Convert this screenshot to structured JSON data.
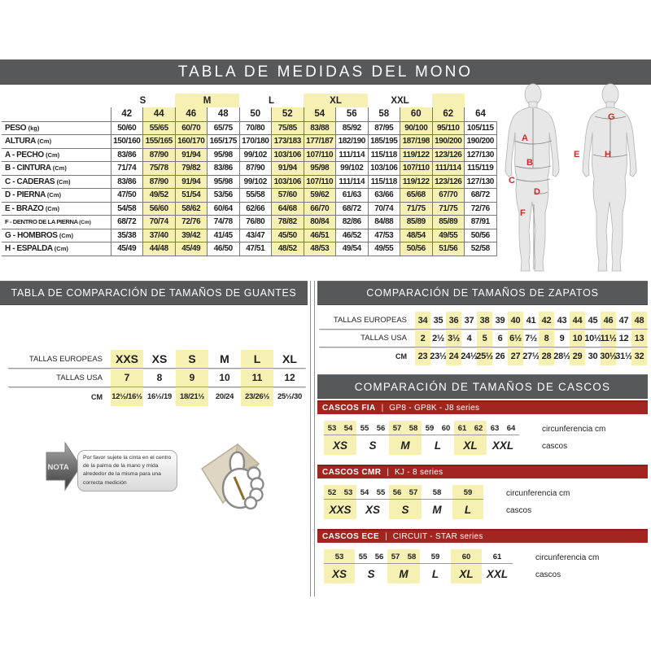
{
  "page": {
    "title": "TABLA DE MEDIDAS DEL MONO"
  },
  "colors": {
    "banner_gray": "#57585a",
    "banner_red": "#a32520",
    "highlight_yellow": "#f6f0b2"
  },
  "suit_table": {
    "groups": [
      {
        "label": "",
        "span": 1,
        "highlight": false
      },
      {
        "label": "S",
        "span": 2,
        "highlight": true
      },
      {
        "label": "M",
        "span": 2,
        "highlight": false
      },
      {
        "label": "L",
        "span": 2,
        "highlight": true
      },
      {
        "label": "XL",
        "span": 2,
        "highlight": false
      },
      {
        "label": "XXL",
        "span": 2,
        "highlight": true
      },
      {
        "label": "",
        "span": 1,
        "highlight": false
      }
    ],
    "sizes": [
      "42",
      "44",
      "46",
      "48",
      "50",
      "52",
      "54",
      "56",
      "58",
      "60",
      "62",
      "64"
    ],
    "highlight_cols": [
      1,
      2,
      5,
      6,
      9,
      10
    ],
    "rows": [
      {
        "label": "PESO",
        "unit": "(kg)",
        "values": [
          "50/60",
          "55/65",
          "60/70",
          "65/75",
          "70/80",
          "75/85",
          "83/88",
          "85/92",
          "87/95",
          "90/100",
          "95/110",
          "105/115"
        ]
      },
      {
        "label": "ALTURA",
        "unit": "(Cm)",
        "values": [
          "150/160",
          "155/165",
          "160/170",
          "165/175",
          "170/180",
          "173/183",
          "177/187",
          "182/190",
          "185/195",
          "187/198",
          "190/200",
          "190/200"
        ]
      },
      {
        "label": "A - PECHO",
        "unit": "(Cm)",
        "values": [
          "83/86",
          "87/90",
          "91/94",
          "95/98",
          "99/102",
          "103/106",
          "107/110",
          "111/114",
          "115/118",
          "119/122",
          "123/126",
          "127/130"
        ]
      },
      {
        "label": "B - CINTURA",
        "unit": "(Cm)",
        "values": [
          "71/74",
          "75/78",
          "79/82",
          "83/86",
          "87/90",
          "91/94",
          "95/98",
          "99/102",
          "103/106",
          "107/110",
          "111/114",
          "115/119"
        ]
      },
      {
        "label": "C - CADERAS",
        "unit": "(Cm)",
        "values": [
          "83/86",
          "87/90",
          "91/94",
          "95/98",
          "99/102",
          "103/106",
          "107/110",
          "111/114",
          "115/118",
          "119/122",
          "123/126",
          "127/130"
        ]
      },
      {
        "label": "D - PIERNA",
        "unit": "(Cm)",
        "values": [
          "47/50",
          "49/52",
          "51/54",
          "53/56",
          "55/58",
          "57/60",
          "59/62",
          "61/63",
          "63/66",
          "65/68",
          "67/70",
          "68/72"
        ]
      },
      {
        "label": "E - BRAZO",
        "unit": "(Cm)",
        "values": [
          "54/58",
          "56/60",
          "58/62",
          "60/64",
          "62/66",
          "64/68",
          "66/70",
          "68/72",
          "70/74",
          "71/75",
          "71/75",
          "72/76"
        ]
      },
      {
        "label": "F - DENTRO DE LA PIERNA",
        "unit": "(Cm)",
        "values": [
          "68/72",
          "70/74",
          "72/76",
          "74/78",
          "76/80",
          "78/82",
          "80/84",
          "82/86",
          "84/88",
          "85/89",
          "85/89",
          "87/91"
        ]
      },
      {
        "label": "G - HOMBROS",
        "unit": "(Cm)",
        "values": [
          "35/38",
          "37/40",
          "39/42",
          "41/45",
          "43/47",
          "45/50",
          "46/51",
          "46/52",
          "47/53",
          "48/54",
          "49/55",
          "50/56"
        ]
      },
      {
        "label": "H - ESPALDA",
        "unit": "(Cm)",
        "values": [
          "45/49",
          "44/48",
          "45/49",
          "46/50",
          "47/51",
          "48/52",
          "48/53",
          "49/54",
          "49/55",
          "50/56",
          "51/56",
          "52/58"
        ]
      }
    ]
  },
  "figures": {
    "front_labels": [
      "A",
      "B",
      "C",
      "D",
      "F"
    ],
    "back_labels": [
      "G",
      "E",
      "H"
    ]
  },
  "gloves": {
    "title": "TABLA DE COMPARACIÓN DE TAMAÑOS DE GUANTES",
    "highlight_cols": [
      0,
      2,
      4
    ],
    "rows": [
      {
        "label": "TALLAS EUROPEAS",
        "values": [
          "XXS",
          "XS",
          "S",
          "M",
          "L",
          "XL"
        ]
      },
      {
        "label": "TALLAS USA",
        "values": [
          "7",
          "8",
          "9",
          "10",
          "11",
          "12"
        ]
      },
      {
        "label": "CM",
        "values": [
          "12½/16½",
          "16½/19",
          "18/21½",
          "20/24",
          "23/26½",
          "25½/30"
        ]
      }
    ],
    "note": {
      "tag": "NOTA",
      "text": "Por favor sujete la cinta en el centro de la palma de la mano y mida alrededor de la misma para una correcta medición"
    }
  },
  "shoes": {
    "title": "COMPARACIÓN DE TAMAÑOS DE ZAPATOS",
    "highlight_cols": [
      0,
      2,
      4,
      6,
      8,
      10,
      12,
      14
    ],
    "rows": [
      {
        "label": "TALLAS EUROPEAS",
        "values": [
          "34",
          "35",
          "36",
          "37",
          "38",
          "39",
          "40",
          "41",
          "42",
          "43",
          "44",
          "45",
          "46",
          "47",
          "48"
        ]
      },
      {
        "label": "TALLAS USA",
        "values": [
          "2",
          "2½",
          "3½",
          "4",
          "5",
          "6",
          "6½",
          "7½",
          "8",
          "9",
          "10",
          "10½",
          "11½",
          "12",
          "13"
        ]
      },
      {
        "label": "CM",
        "values": [
          "23",
          "23½",
          "24",
          "24½",
          "25½",
          "26",
          "27",
          "27½",
          "28",
          "28½",
          "29",
          "30",
          "30½",
          "31½",
          "32"
        ]
      }
    ]
  },
  "helmets": {
    "title": "COMPARACIÓN DE TAMAÑOS DE CASCOS",
    "divider": "|",
    "row_label_circ": "circunferencia cm",
    "row_label_size": "cascos",
    "blocks": [
      {
        "name": "CASCOS FIA",
        "series": "GP8 - GP8K - J8 series",
        "groups": [
          {
            "label": "XS",
            "numbers": [
              "53",
              "54"
            ],
            "highlight": true
          },
          {
            "label": "S",
            "numbers": [
              "55",
              "56"
            ],
            "highlight": false
          },
          {
            "label": "M",
            "numbers": [
              "57",
              "58"
            ],
            "highlight": true
          },
          {
            "label": "L",
            "numbers": [
              "59",
              "60"
            ],
            "highlight": false
          },
          {
            "label": "XL",
            "numbers": [
              "61",
              "62"
            ],
            "highlight": true
          },
          {
            "label": "XXL",
            "numbers": [
              "63",
              "64"
            ],
            "highlight": false
          }
        ]
      },
      {
        "name": "CASCOS CMR",
        "series": "KJ - 8 series",
        "groups": [
          {
            "label": "XXS",
            "numbers": [
              "52",
              "53"
            ],
            "highlight": true
          },
          {
            "label": "XS",
            "numbers": [
              "54",
              "55"
            ],
            "highlight": false
          },
          {
            "label": "S",
            "numbers": [
              "56",
              "57"
            ],
            "highlight": true
          },
          {
            "label": "M",
            "numbers": [
              "58"
            ],
            "highlight": false
          },
          {
            "label": "L",
            "numbers": [
              "59"
            ],
            "highlight": true
          }
        ]
      },
      {
        "name": "CASCOS ECE",
        "series": "CIRCUIT - STAR series",
        "groups": [
          {
            "label": "XS",
            "numbers": [
              "53"
            ],
            "highlight": true
          },
          {
            "label": "S",
            "numbers": [
              "55",
              "56"
            ],
            "highlight": false
          },
          {
            "label": "M",
            "numbers": [
              "57",
              "58"
            ],
            "highlight": true
          },
          {
            "label": "L",
            "numbers": [
              "59"
            ],
            "highlight": false
          },
          {
            "label": "XL",
            "numbers": [
              "60"
            ],
            "highlight": true
          },
          {
            "label": "XXL",
            "numbers": [
              "61"
            ],
            "highlight": false
          }
        ]
      }
    ]
  }
}
